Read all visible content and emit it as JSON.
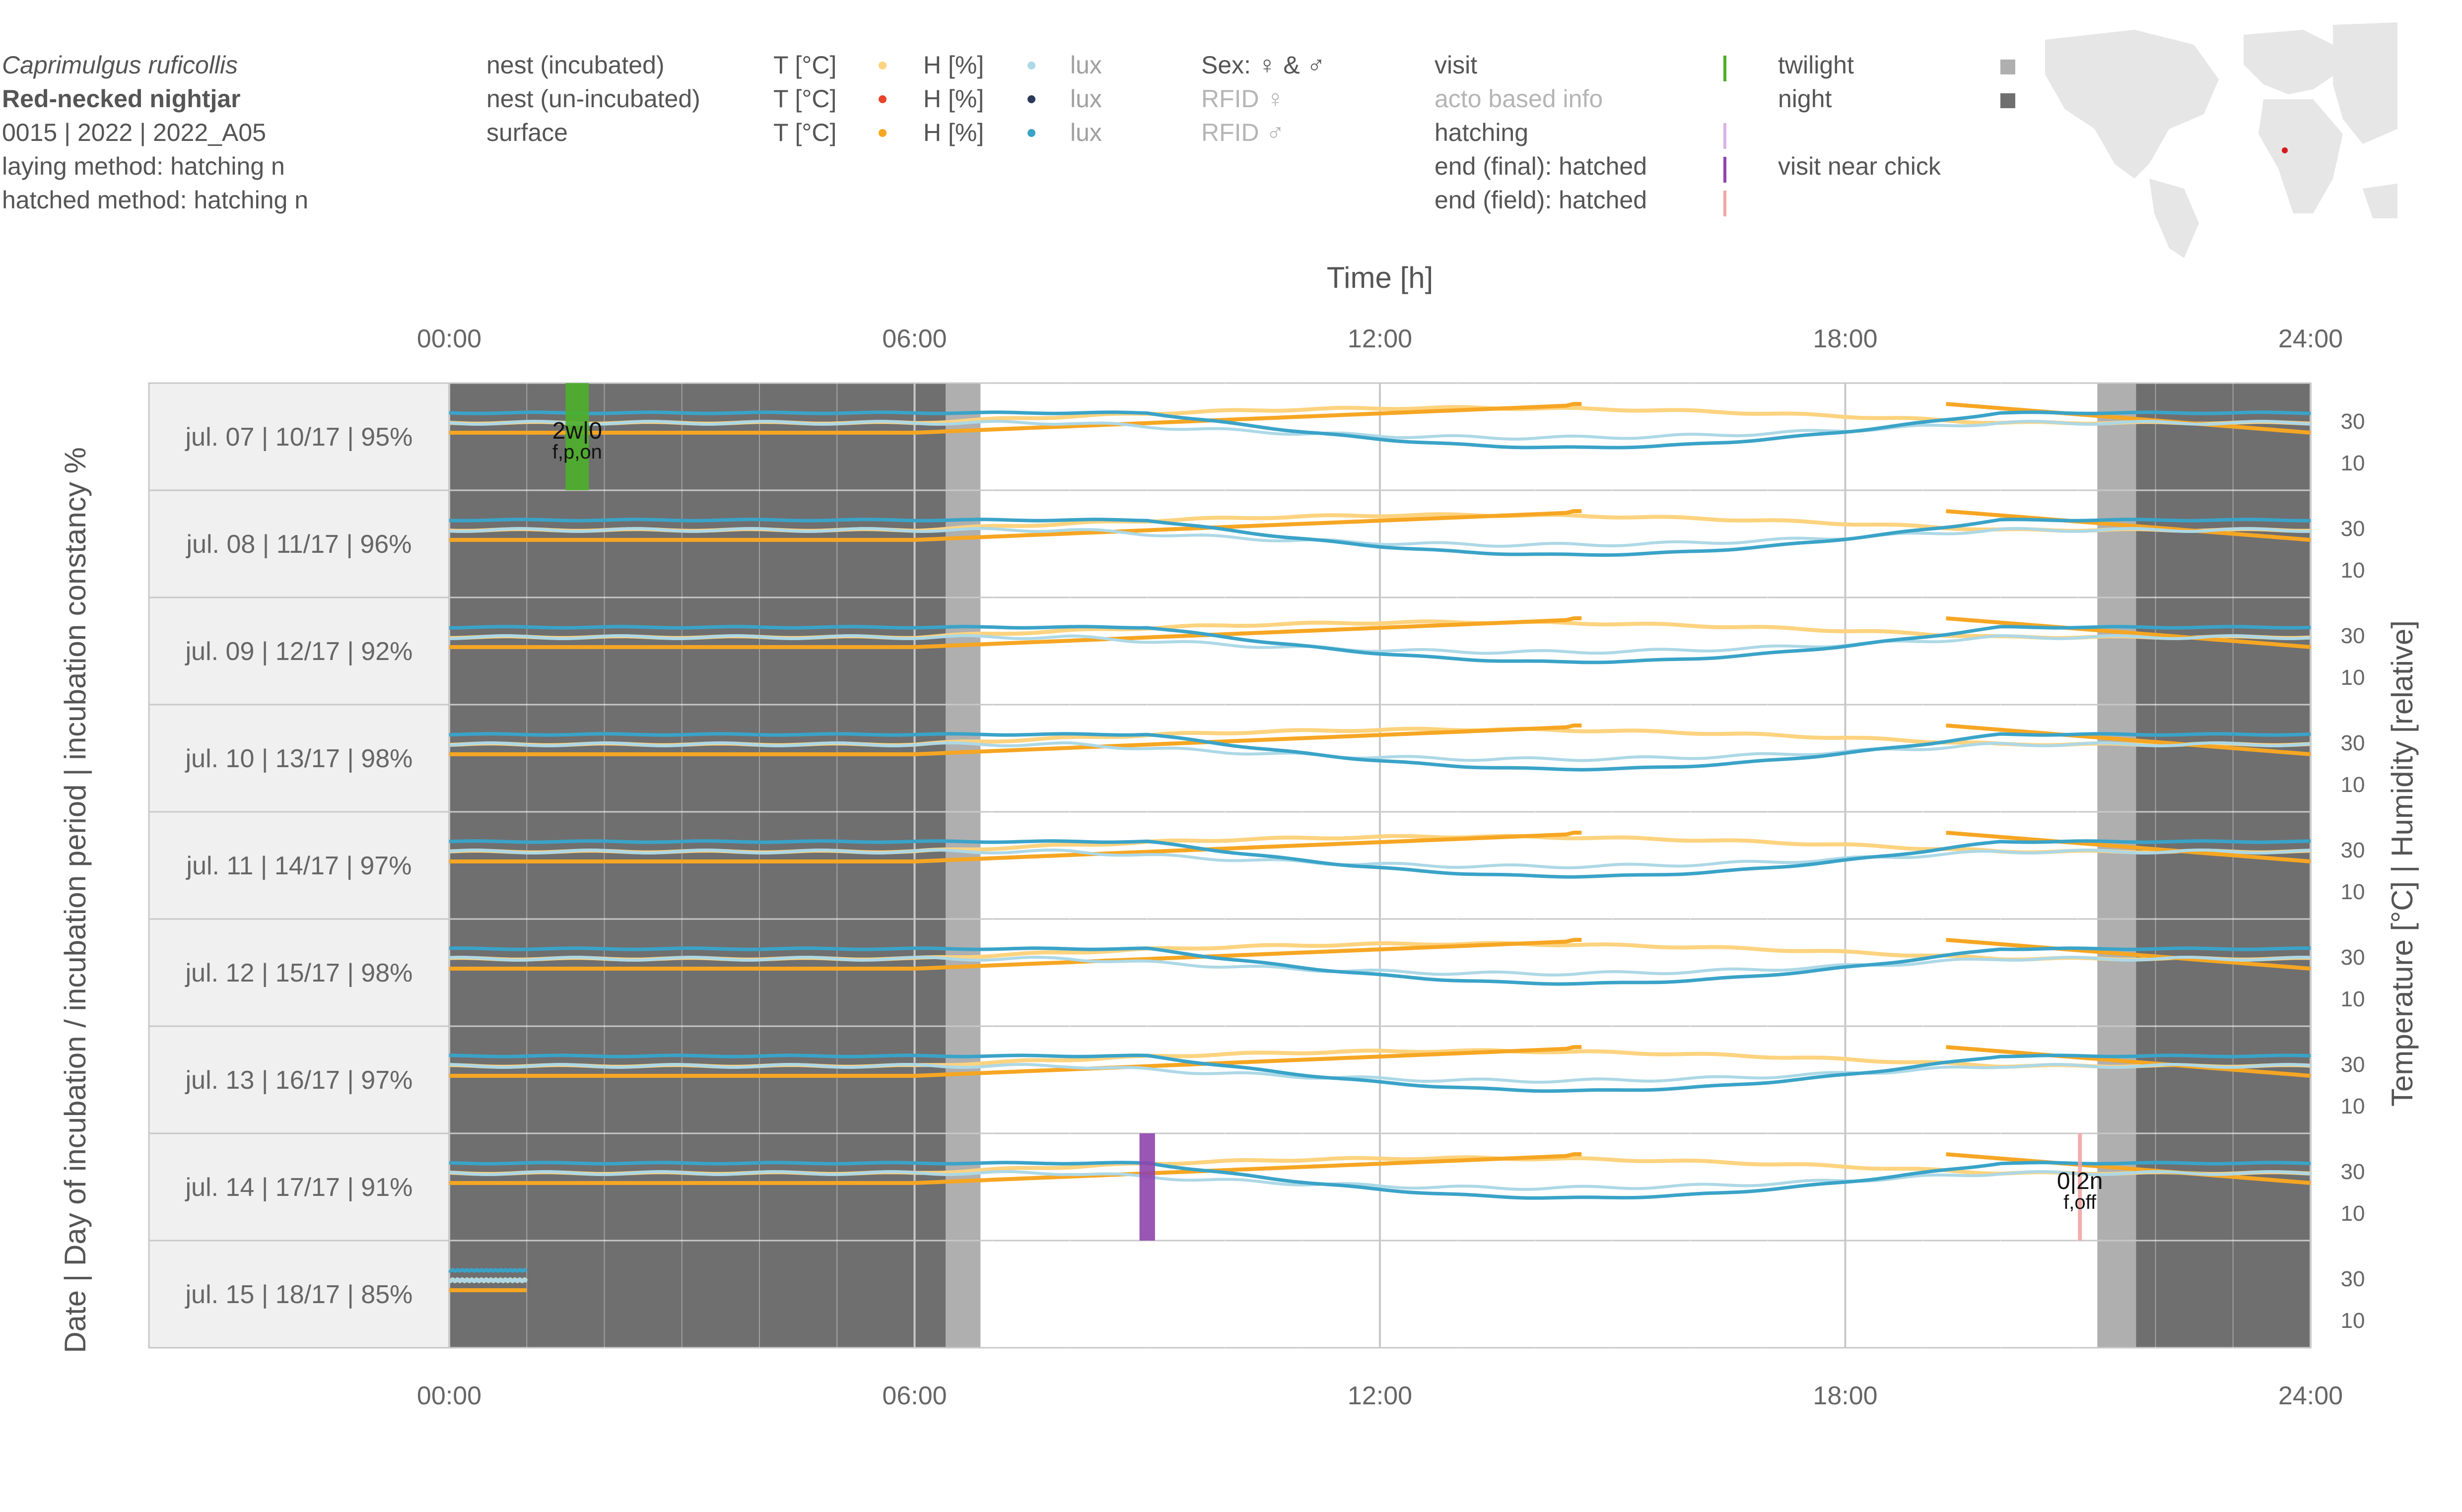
{
  "header": {
    "species_latin": "Caprimulgus ruficollis",
    "species_common": "Red-necked nightjar",
    "ids": "0015 | 2022 | 2022_A05",
    "laying_method": "laying method: hatching n",
    "hatched_method": "hatched method: hatching n"
  },
  "legend": {
    "rows": [
      {
        "label": "nest (incubated)",
        "t": "T [°C]",
        "h": "H [%]",
        "lux": "lux",
        "t_color": "#FDD37F",
        "h_color": "#E8452C",
        "lux_color": "#ADD8E6"
      },
      {
        "label": "nest (un-incubated)",
        "t": "T [°C]",
        "h": "H [%]",
        "lux": "lux",
        "t_color": "#E8452C",
        "h_color": "#2E3A5C",
        "lux_color": "#ADD8E6"
      },
      {
        "label": "surface",
        "t": "T [°C]",
        "h": "H [%]",
        "lux": "lux",
        "t_color": "#F6A623",
        "h_color": "#3AA3C8",
        "lux_color": "#3AA3C8"
      }
    ],
    "sex": {
      "title": "Sex: ♀ & ♂",
      "rfid_f": "RFID ♀",
      "rfid_m": "RFID ♂"
    },
    "events": [
      {
        "label": "visit",
        "color": "#4CAF2A"
      },
      {
        "label": "acto based info",
        "color": ""
      },
      {
        "label": "hatching",
        "color": "#D9B3E6"
      },
      {
        "label": "end (final): hatched",
        "color": "#8E44AD"
      },
      {
        "label": "end (field): hatched",
        "color": "#F2A5A5"
      }
    ],
    "light": [
      {
        "label": "twilight",
        "color": "#AFAFAF"
      },
      {
        "label": "night",
        "color": "#6F6F6F"
      },
      {
        "label": "visit near chick",
        "color": ""
      }
    ]
  },
  "map": {
    "marker_color": "#D7191C"
  },
  "chart_data": {
    "type": "line",
    "title": "Time [h]",
    "xlabel": "Time [h]",
    "ylabel_left": "Date | Day of incubation / incubation period | incubation constancy %",
    "ylabel_right": "Temperature [°C]   |   Humidity [relative]",
    "xlim": [
      0,
      24
    ],
    "x_ticks": [
      "00:00",
      "06:00",
      "12:00",
      "18:00",
      "24:00"
    ],
    "y_ticks": [
      "30",
      "10"
    ],
    "grid": true,
    "rows": [
      {
        "label": "jul. 07 | 10/17 | 95%",
        "night_end": 6.4,
        "twilight_end": 6.85,
        "twilight_start": 21.25,
        "night_start": 21.75,
        "data_end": 24
      },
      {
        "label": "jul. 08 | 11/17 | 96%",
        "night_end": 6.4,
        "twilight_end": 6.85,
        "twilight_start": 21.25,
        "night_start": 21.75,
        "data_end": 24
      },
      {
        "label": "jul. 09 | 12/17 | 92%",
        "night_end": 6.4,
        "twilight_end": 6.85,
        "twilight_start": 21.25,
        "night_start": 21.75,
        "data_end": 24
      },
      {
        "label": "jul. 10 | 13/17 | 98%",
        "night_end": 6.4,
        "twilight_end": 6.85,
        "twilight_start": 21.25,
        "night_start": 21.75,
        "data_end": 24
      },
      {
        "label": "jul. 11 | 14/17 | 97%",
        "night_end": 6.4,
        "twilight_end": 6.85,
        "twilight_start": 21.25,
        "night_start": 21.75,
        "data_end": 24
      },
      {
        "label": "jul. 12 | 15/17 | 98%",
        "night_end": 6.4,
        "twilight_end": 6.85,
        "twilight_start": 21.25,
        "night_start": 21.75,
        "data_end": 24
      },
      {
        "label": "jul. 13 | 16/17 | 97%",
        "night_end": 6.4,
        "twilight_end": 6.85,
        "twilight_start": 21.25,
        "night_start": 21.75,
        "data_end": 24
      },
      {
        "label": "jul. 14 | 17/17 | 91%",
        "night_end": 6.4,
        "twilight_end": 6.85,
        "twilight_start": 21.25,
        "night_start": 21.75,
        "data_end": 24
      },
      {
        "label": "jul. 15 | 18/17 | 85%",
        "night_end": 6.4,
        "twilight_end": 6.85,
        "twilight_start": 21.25,
        "night_start": 21.75,
        "data_end": 1.0
      }
    ],
    "events": [
      {
        "row": 0,
        "type": "visit",
        "start": 1.5,
        "end": 1.8,
        "color": "#4CAF2A",
        "label_top": "2w|0",
        "label_bottom": "f,p,on"
      },
      {
        "row": 7,
        "type": "end (final): hatched",
        "start": 8.9,
        "end": 9.1,
        "color": "#8E44AD",
        "label_top": "",
        "label_bottom": ""
      },
      {
        "row": 7,
        "type": "end (field): hatched",
        "start": 21.0,
        "end": 21.05,
        "color": "#F2A5A5",
        "label_top": "0|2n",
        "label_bottom": "f,off"
      }
    ]
  }
}
